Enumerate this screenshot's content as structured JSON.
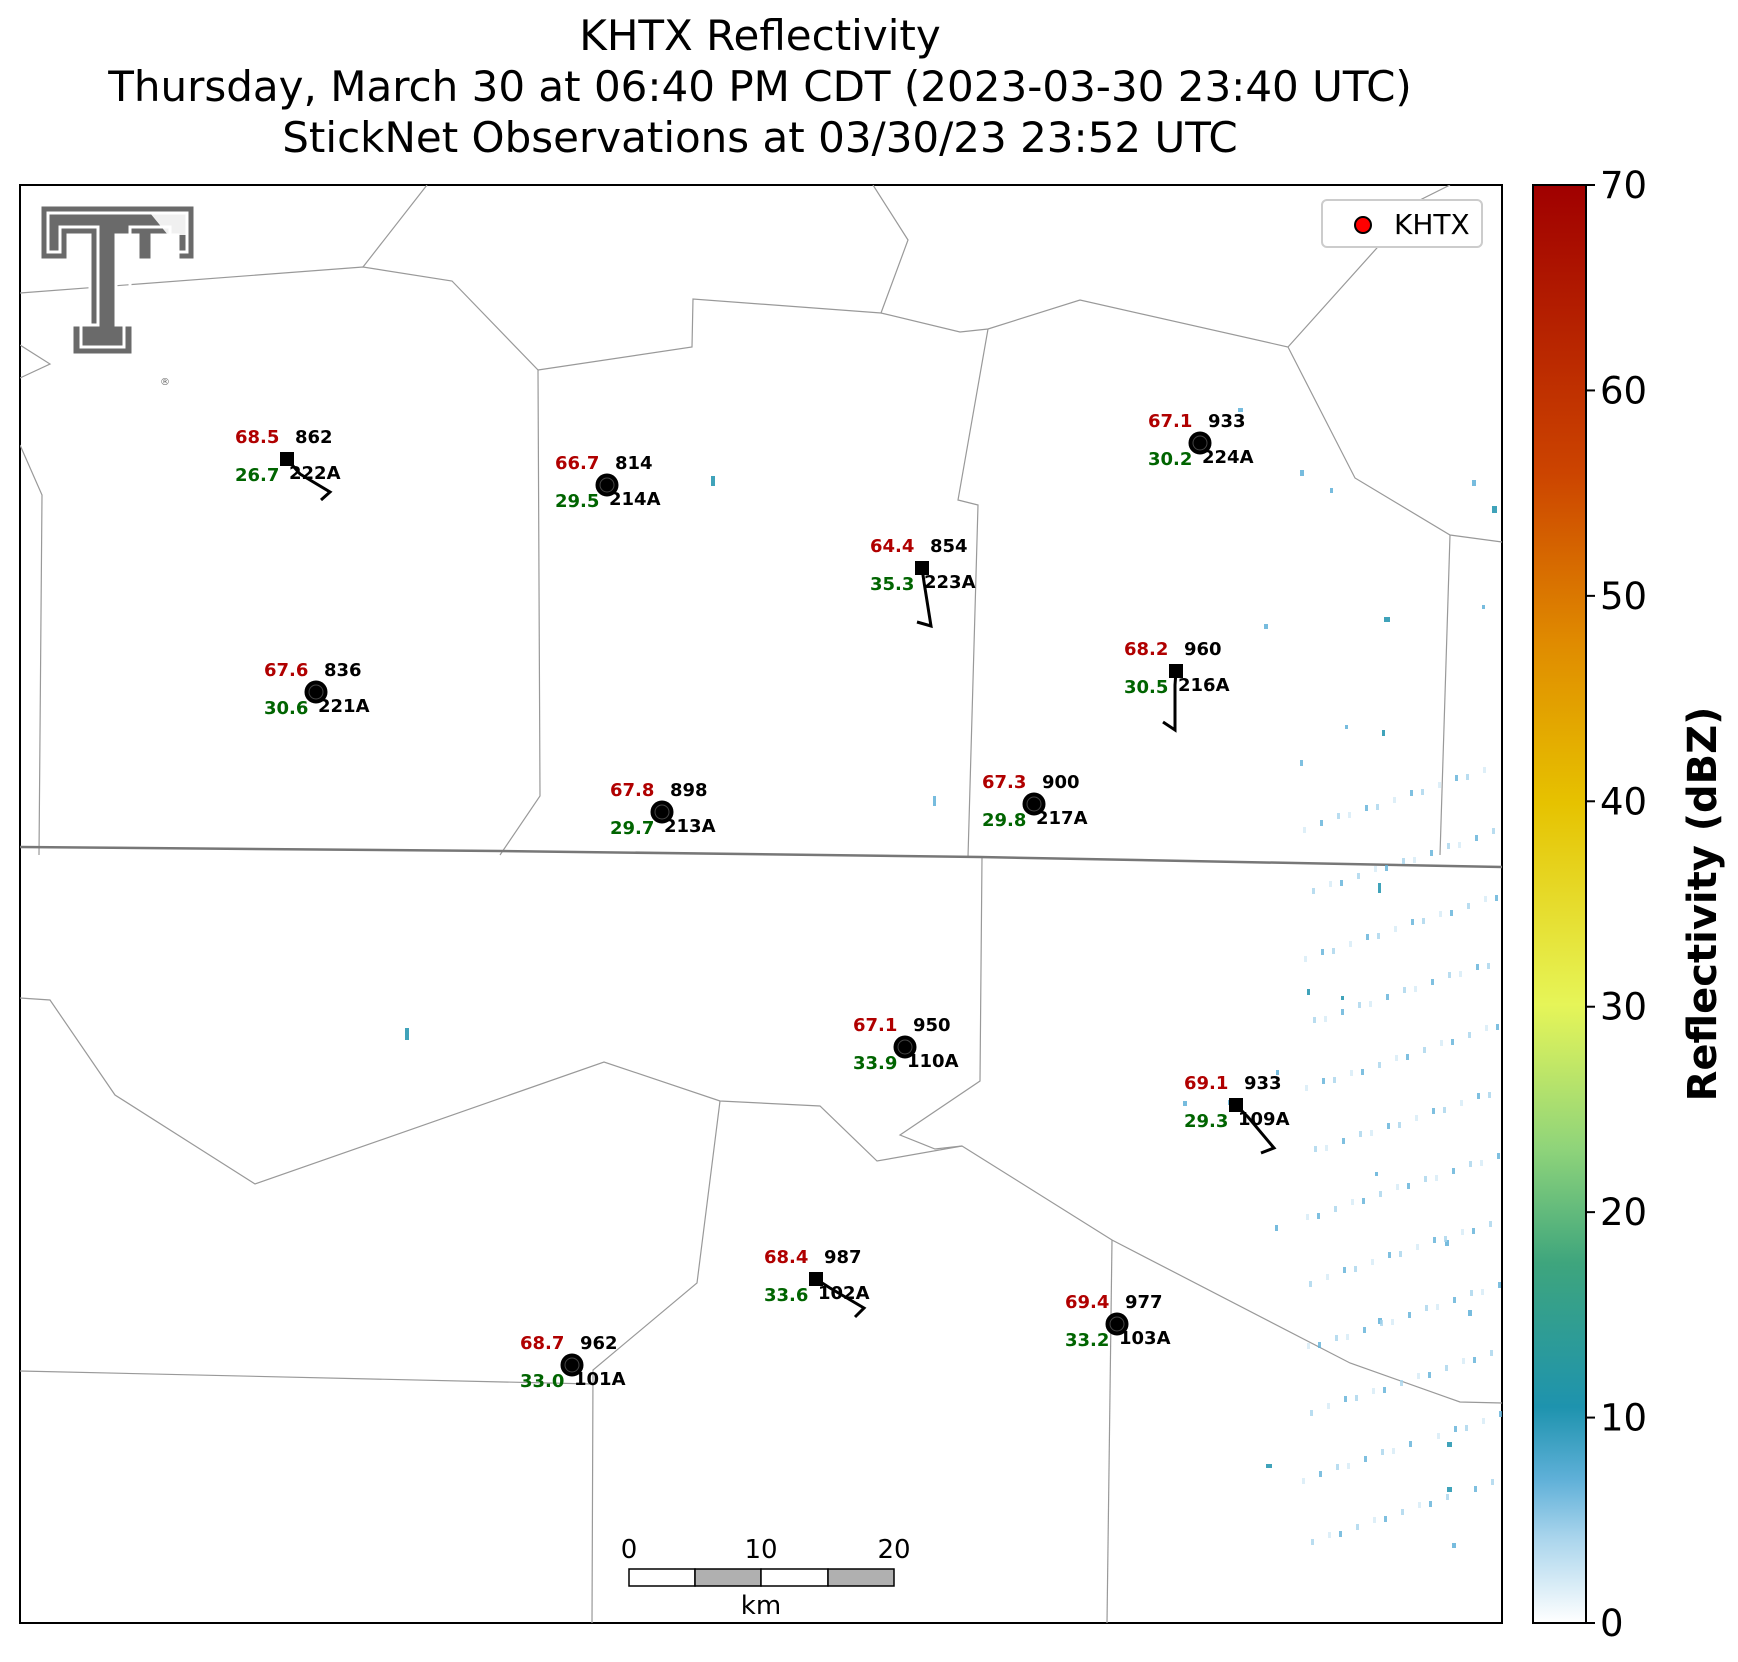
{
  "title": {
    "line1": "KHTX Reflectivity",
    "line2": "Thursday, March 30 at 06:40 PM CDT (2023-03-30 23:40 UTC)",
    "line3": "StickNet Observations at 03/30/23 23:52 UTC"
  },
  "legend": {
    "label": "KHTX",
    "marker_color": "#ff0000"
  },
  "colorbar": {
    "label": "Reflectivity (dBZ)",
    "min": 0,
    "max": 70,
    "ticks": [
      "0",
      "10",
      "20",
      "30",
      "40",
      "50",
      "60",
      "70"
    ],
    "colors": [
      "#ffffff",
      "#5fb0d8",
      "#1e93ae",
      "#3ea57d",
      "#8fd47a",
      "#e6f558",
      "#e6c200",
      "#e08c00",
      "#cc4400",
      "#a00000"
    ]
  },
  "scalebar": {
    "ticks": [
      "0",
      "10",
      "20"
    ],
    "unit": "km"
  },
  "logo": {
    "name": "texas-tech-double-t-logo",
    "color": "#6a6a6a"
  },
  "stations": [
    {
      "id": "222A",
      "temp": "68.5",
      "dew": "26.7",
      "pressure": "862",
      "marker": "square"
    },
    {
      "id": "214A",
      "temp": "66.7",
      "dew": "29.5",
      "pressure": "814",
      "marker": "circle"
    },
    {
      "id": "224A",
      "temp": "67.1",
      "dew": "30.2",
      "pressure": "933",
      "marker": "circle"
    },
    {
      "id": "223A",
      "temp": "64.4",
      "dew": "35.3",
      "pressure": "854",
      "marker": "square"
    },
    {
      "id": "221A",
      "temp": "67.6",
      "dew": "30.6",
      "pressure": "836",
      "marker": "circle"
    },
    {
      "id": "216A",
      "temp": "68.2",
      "dew": "30.5",
      "pressure": "960",
      "marker": "square"
    },
    {
      "id": "213A",
      "temp": "67.8",
      "dew": "29.7",
      "pressure": "898",
      "marker": "circle"
    },
    {
      "id": "217A",
      "temp": "67.3",
      "dew": "29.8",
      "pressure": "900",
      "marker": "circle"
    },
    {
      "id": "110A",
      "temp": "67.1",
      "dew": "33.9",
      "pressure": "950",
      "marker": "circle"
    },
    {
      "id": "109A",
      "temp": "69.1",
      "dew": "29.3",
      "pressure": "933",
      "marker": "square"
    },
    {
      "id": "102A",
      "temp": "68.4",
      "dew": "33.6",
      "pressure": "987",
      "marker": "square"
    },
    {
      "id": "103A",
      "temp": "69.4",
      "dew": "33.2",
      "pressure": "977",
      "marker": "circle"
    },
    {
      "id": "101A",
      "temp": "68.7",
      "dew": "33.0",
      "pressure": "962",
      "marker": "circle"
    }
  ]
}
